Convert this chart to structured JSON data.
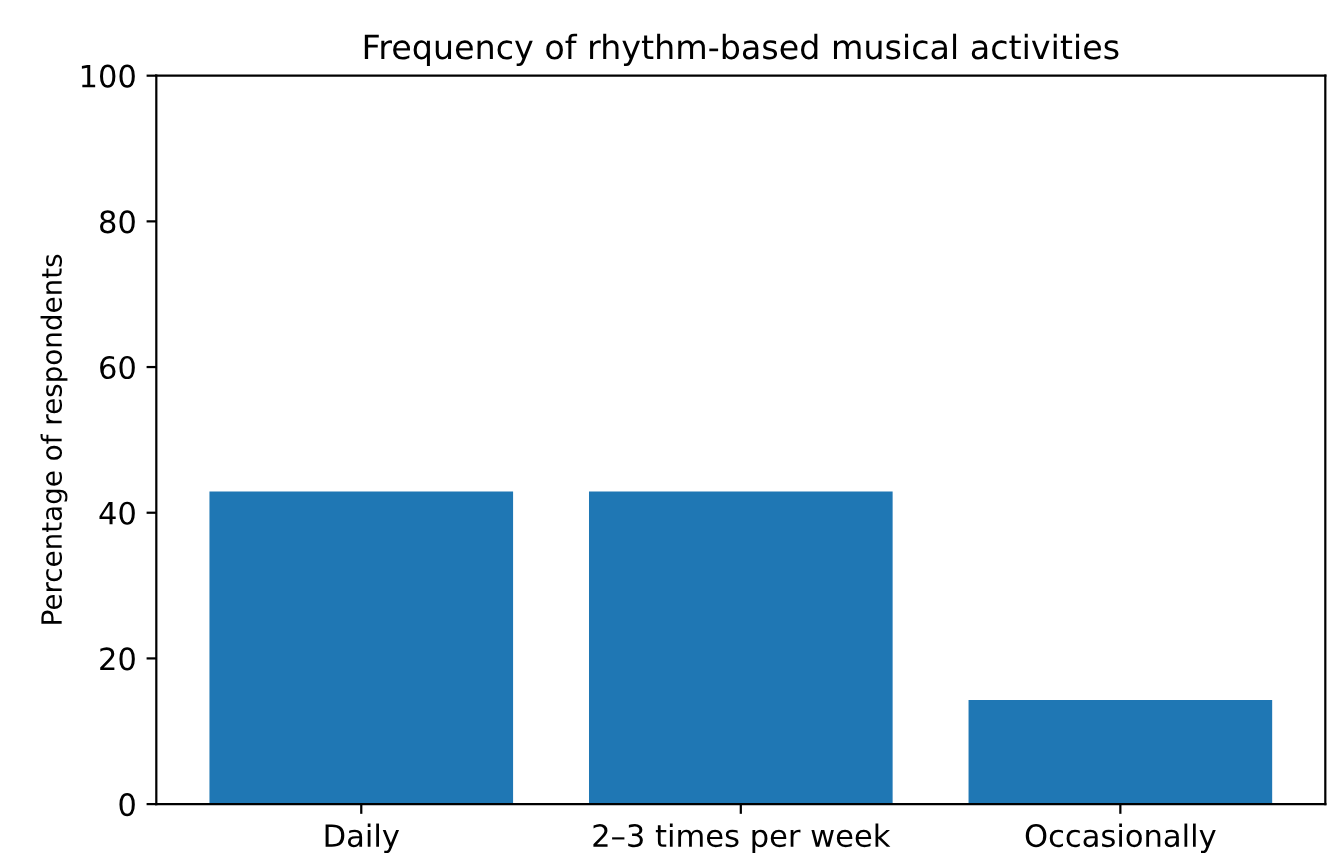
{
  "chart_data": {
    "type": "bar",
    "title": "Frequency of rhythm-based musical activities",
    "ylabel": "Percentage of respondents",
    "categories": [
      "Daily",
      "2–3 times per week",
      "Occasionally"
    ],
    "values": [
      42.9,
      42.9,
      14.3
    ],
    "color": "#1f77b4",
    "ylim": [
      0,
      100
    ],
    "yticks": [
      0,
      20,
      40,
      60,
      80,
      100
    ],
    "grid": false
  }
}
